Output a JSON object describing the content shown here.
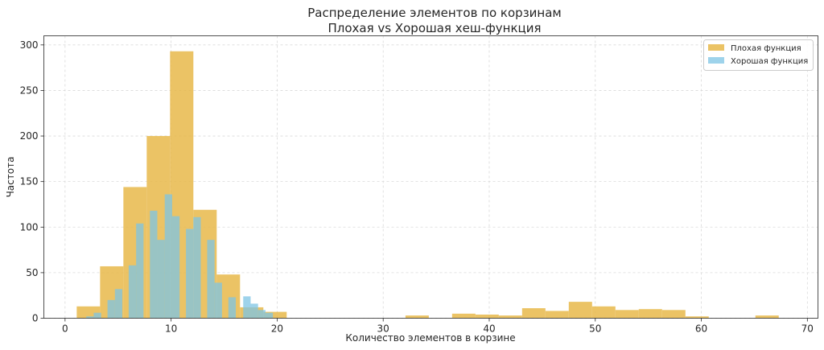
{
  "chart_data": {
    "type": "bar",
    "title_line1": "Распределение элементов по корзинам",
    "title_line2": "Плохая vs Хорошая хеш-функция",
    "xlabel": "Количество элементов в корзине",
    "ylabel": "Частота",
    "xlim": [
      -2,
      71
    ],
    "ylim": [
      0,
      310
    ],
    "xticks": [
      0,
      10,
      20,
      30,
      40,
      50,
      60,
      70
    ],
    "yticks": [
      0,
      50,
      100,
      150,
      200,
      250,
      300
    ],
    "grid": true,
    "legend_position": "top-right",
    "series": [
      {
        "name": "Плохая функция",
        "color": "#E8B84A",
        "bins": [
          {
            "x0": 1.1,
            "x1": 3.3,
            "count": 13
          },
          {
            "x0": 3.3,
            "x1": 5.5,
            "count": 57
          },
          {
            "x0": 5.5,
            "x1": 7.7,
            "count": 144
          },
          {
            "x0": 7.7,
            "x1": 9.9,
            "count": 200
          },
          {
            "x0": 9.9,
            "x1": 12.1,
            "count": 293
          },
          {
            "x0": 12.1,
            "x1": 14.3,
            "count": 119
          },
          {
            "x0": 14.3,
            "x1": 16.5,
            "count": 48
          },
          {
            "x0": 16.5,
            "x1": 18.7,
            "count": 12
          },
          {
            "x0": 18.7,
            "x1": 20.9,
            "count": 7
          },
          {
            "x0": 32.1,
            "x1": 34.3,
            "count": 3
          },
          {
            "x0": 36.5,
            "x1": 38.7,
            "count": 5
          },
          {
            "x0": 38.7,
            "x1": 40.9,
            "count": 4
          },
          {
            "x0": 40.9,
            "x1": 43.1,
            "count": 3
          },
          {
            "x0": 43.1,
            "x1": 45.3,
            "count": 11
          },
          {
            "x0": 45.3,
            "x1": 47.5,
            "count": 8
          },
          {
            "x0": 47.5,
            "x1": 49.7,
            "count": 18
          },
          {
            "x0": 49.7,
            "x1": 51.9,
            "count": 13
          },
          {
            "x0": 51.9,
            "x1": 54.1,
            "count": 9
          },
          {
            "x0": 54.1,
            "x1": 56.3,
            "count": 10
          },
          {
            "x0": 56.3,
            "x1": 58.5,
            "count": 9
          },
          {
            "x0": 58.5,
            "x1": 60.7,
            "count": 2
          },
          {
            "x0": 65.1,
            "x1": 67.3,
            "count": 3
          }
        ]
      },
      {
        "name": "Хорошая функция",
        "color": "#7EC4E4",
        "bins": [
          {
            "x0": 2.0,
            "x1": 2.7,
            "count": 2
          },
          {
            "x0": 2.7,
            "x1": 3.4,
            "count": 6
          },
          {
            "x0": 4.0,
            "x1": 4.7,
            "count": 20
          },
          {
            "x0": 4.7,
            "x1": 5.4,
            "count": 32
          },
          {
            "x0": 6.0,
            "x1": 6.7,
            "count": 58
          },
          {
            "x0": 6.7,
            "x1": 7.4,
            "count": 104
          },
          {
            "x0": 8.0,
            "x1": 8.7,
            "count": 118
          },
          {
            "x0": 8.7,
            "x1": 9.4,
            "count": 86
          },
          {
            "x0": 9.4,
            "x1": 10.1,
            "count": 136
          },
          {
            "x0": 10.1,
            "x1": 10.8,
            "count": 112
          },
          {
            "x0": 11.4,
            "x1": 12.1,
            "count": 98
          },
          {
            "x0": 12.1,
            "x1": 12.8,
            "count": 111
          },
          {
            "x0": 13.4,
            "x1": 14.1,
            "count": 86
          },
          {
            "x0": 14.1,
            "x1": 14.8,
            "count": 39
          },
          {
            "x0": 15.4,
            "x1": 16.1,
            "count": 23
          },
          {
            "x0": 16.8,
            "x1": 17.5,
            "count": 24
          },
          {
            "x0": 17.5,
            "x1": 18.2,
            "count": 16
          },
          {
            "x0": 18.2,
            "x1": 18.9,
            "count": 9
          },
          {
            "x0": 18.9,
            "x1": 19.6,
            "count": 6
          }
        ]
      }
    ]
  }
}
